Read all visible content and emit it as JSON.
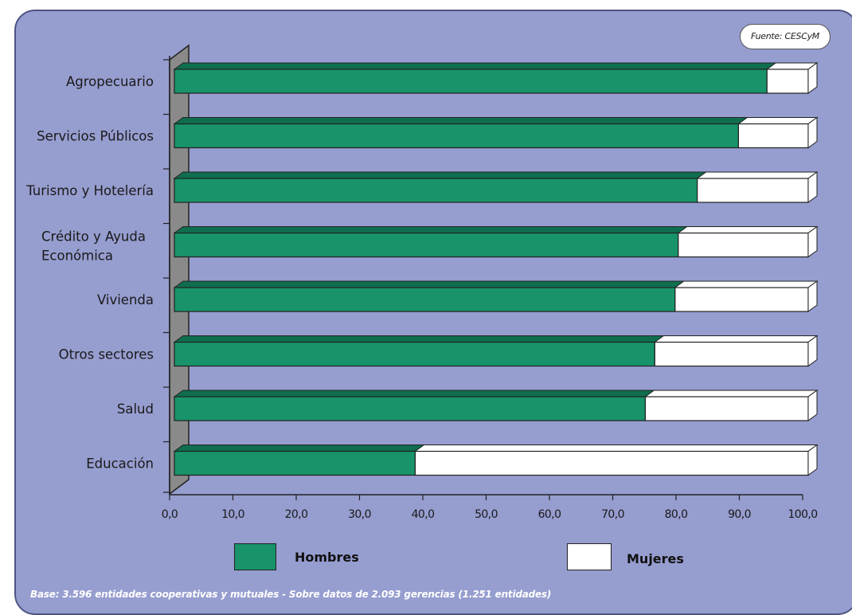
{
  "source": "Fuente: CESCyM",
  "footnote": "Base: 3.596 entidades cooperativas y mutuales - Sobre datos de 2.093 gerencias (1.251 entidades)",
  "legend": {
    "hombres": "Hombres",
    "mujeres": "Mujeres"
  },
  "colors": {
    "hombres": "#18936a",
    "mujeres": "#ffffff",
    "background": "#969dcf",
    "wall": "#8a8a8a"
  },
  "chart_data": {
    "type": "bar",
    "orientation": "horizontal",
    "stacked": true,
    "style": "3d",
    "categories": [
      [
        "Agropecuario"
      ],
      [
        "Servicios Públicos"
      ],
      [
        "Turismo y Hotelería"
      ],
      [
        "Crédito y Ayuda",
        "Económica"
      ],
      [
        "Vivienda"
      ],
      [
        "Otros sectores"
      ],
      [
        "Salud"
      ],
      [
        "Educación"
      ]
    ],
    "series": [
      {
        "name": "Hombres",
        "values": [
          93.5,
          89.0,
          82.5,
          79.5,
          79.0,
          75.8,
          74.3,
          38.0
        ]
      },
      {
        "name": "Mujeres",
        "values": [
          6.5,
          11.0,
          17.5,
          20.5,
          21.0,
          24.2,
          25.7,
          62.0
        ]
      }
    ],
    "xlim": [
      0,
      100
    ],
    "xticks": [
      "0,0",
      "10,0",
      "20,0",
      "30,0",
      "40,0",
      "50,0",
      "60,0",
      "70,0",
      "80,0",
      "90,0",
      "100,0"
    ],
    "legend_position": "bottom"
  }
}
